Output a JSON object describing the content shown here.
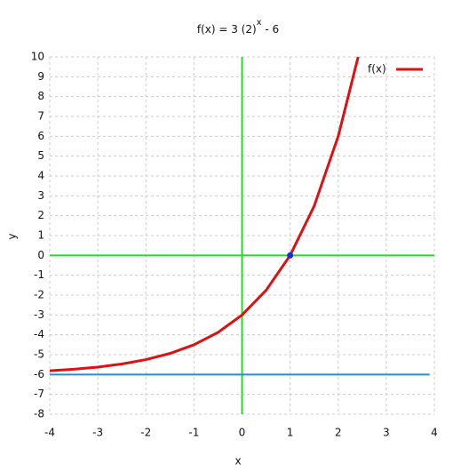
{
  "chart_data": {
    "type": "line",
    "title": [
      "f(x) =  3 (2)",
      "x",
      " - 6"
    ],
    "x_label": "x",
    "y_label": "y",
    "xlim": [
      -4,
      4
    ],
    "xticks": [
      -4,
      -3,
      -2,
      -1,
      0,
      1,
      2,
      3,
      4
    ],
    "ylim": [
      -8,
      10
    ],
    "yticks": [
      -8,
      -7,
      -6,
      -5,
      -4,
      -3,
      -2,
      -1,
      0,
      1,
      2,
      3,
      4,
      5,
      6,
      7,
      8,
      9,
      10
    ],
    "grid": true,
    "legend": "top-right",
    "axis_color": "#22dd22",
    "series": [
      {
        "name": "f(x)",
        "color": "#dd1111",
        "x": [
          -4,
          -3.5,
          -3,
          -2.5,
          -2,
          -1.5,
          -1,
          -0.5,
          0,
          0.5,
          1,
          1.5,
          2,
          2.415
        ],
        "values": [
          -5.8125,
          -5.735,
          -5.625,
          -5.47,
          -5.25,
          -4.939,
          -4.5,
          -3.879,
          -3,
          -1.757,
          0,
          2.485,
          6,
          10
        ]
      }
    ],
    "asymptote": {
      "color": "#1e8fe0",
      "x": [
        -4,
        3.9
      ],
      "values": [
        -6,
        -6
      ]
    },
    "points": {
      "color": "#1a2ee0",
      "x": [
        1
      ],
      "values": [
        0
      ]
    }
  }
}
